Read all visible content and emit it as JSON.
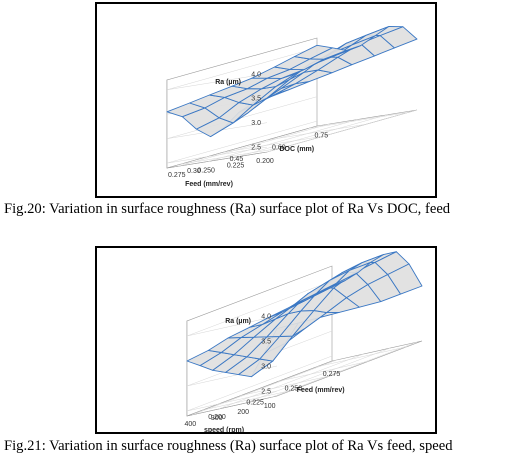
{
  "figures": [
    {
      "caption": "Fig.20: Variation in surface roughness (Ra) surface plot of Ra Vs DOC, feed",
      "chart_data": {
        "type": "surface",
        "title": "",
        "xlabel": "Feed (mm/rev)",
        "ylabel": "DOC (mm)",
        "zlabel": "Ra (µm)",
        "x_ticks": [
          "0.200",
          "0.225",
          "0.250",
          "0.275"
        ],
        "y_ticks": [
          "0.30",
          "0.45",
          "0.60",
          "0.75"
        ],
        "z_ticks": [
          "2.5",
          "3.0",
          "3.5",
          "4.0"
        ],
        "xlim": [
          0.2,
          0.285
        ],
        "ylim": [
          0.25,
          0.78
        ],
        "zlim": [
          2.4,
          4.2
        ],
        "x": [
          0.2,
          0.212,
          0.224,
          0.236,
          0.248,
          0.26,
          0.272,
          0.285
        ],
        "y": [
          0.25,
          0.33,
          0.4,
          0.48,
          0.55,
          0.63,
          0.7,
          0.78
        ],
        "z": [
          [
            3.5,
            3.45,
            3.3,
            3.05,
            2.9,
            3.1,
            3.4,
            3.55
          ],
          [
            3.55,
            3.5,
            3.4,
            3.2,
            3.05,
            3.2,
            3.45,
            3.6
          ],
          [
            3.6,
            3.6,
            3.55,
            3.4,
            3.3,
            3.4,
            3.55,
            3.65
          ],
          [
            3.65,
            3.75,
            3.75,
            3.65,
            3.55,
            3.55,
            3.6,
            3.7
          ],
          [
            3.7,
            3.9,
            3.95,
            3.85,
            3.7,
            3.65,
            3.7,
            3.75
          ],
          [
            3.75,
            4.05,
            4.1,
            3.95,
            3.8,
            3.7,
            3.75,
            3.85
          ],
          [
            3.8,
            4.1,
            4.15,
            4.0,
            3.85,
            3.8,
            3.85,
            3.95
          ],
          [
            3.85,
            4.15,
            4.2,
            4.05,
            3.9,
            3.85,
            3.95,
            4.05
          ]
        ],
        "surface_fill": "#e0e0e0",
        "mesh_color": "#3b78c4",
        "grid": true
      }
    },
    {
      "caption": "Fig.21: Variation in surface roughness (Ra) surface plot of Ra Vs feed, speed",
      "chart_data": {
        "type": "surface",
        "title": "",
        "xlabel": "speed (rpm)",
        "ylabel": "Feed (mm/rev)",
        "zlabel": "Ra (µm)",
        "x_ticks": [
          "100",
          "200",
          "300",
          "400"
        ],
        "y_ticks": [
          "0.200",
          "0.225",
          "0.250",
          "0.275"
        ],
        "z_ticks": [
          "2.5",
          "3.0",
          "3.5",
          "4.0"
        ],
        "xlim": [
          80,
          420
        ],
        "ylim": [
          0.19,
          0.285
        ],
        "zlim": [
          2.4,
          4.3
        ],
        "x": [
          80,
          129,
          177,
          226,
          274,
          323,
          371,
          420
        ],
        "y": [
          0.19,
          0.204,
          0.217,
          0.231,
          0.244,
          0.258,
          0.271,
          0.285
        ],
        "z": [
          [
            3.75,
            3.3,
            2.9,
            3.0,
            3.1,
            3.2,
            3.35,
            3.5
          ],
          [
            3.7,
            3.35,
            3.05,
            3.15,
            3.25,
            3.35,
            3.45,
            3.55
          ],
          [
            3.65,
            3.5,
            3.4,
            3.45,
            3.5,
            3.55,
            3.6,
            3.65
          ],
          [
            3.6,
            3.65,
            3.75,
            3.8,
            3.8,
            3.75,
            3.7,
            3.7
          ],
          [
            3.55,
            3.8,
            4.05,
            4.1,
            4.05,
            3.9,
            3.8,
            3.75
          ],
          [
            3.5,
            3.9,
            4.2,
            4.25,
            4.15,
            3.95,
            3.85,
            3.8
          ],
          [
            3.5,
            3.95,
            4.25,
            4.3,
            4.2,
            4.0,
            3.9,
            3.85
          ],
          [
            3.5,
            4.0,
            4.3,
            4.3,
            4.2,
            4.05,
            3.95,
            3.9
          ]
        ],
        "surface_fill": "#e0e0e0",
        "mesh_color": "#3b78c4",
        "grid": true
      }
    }
  ]
}
